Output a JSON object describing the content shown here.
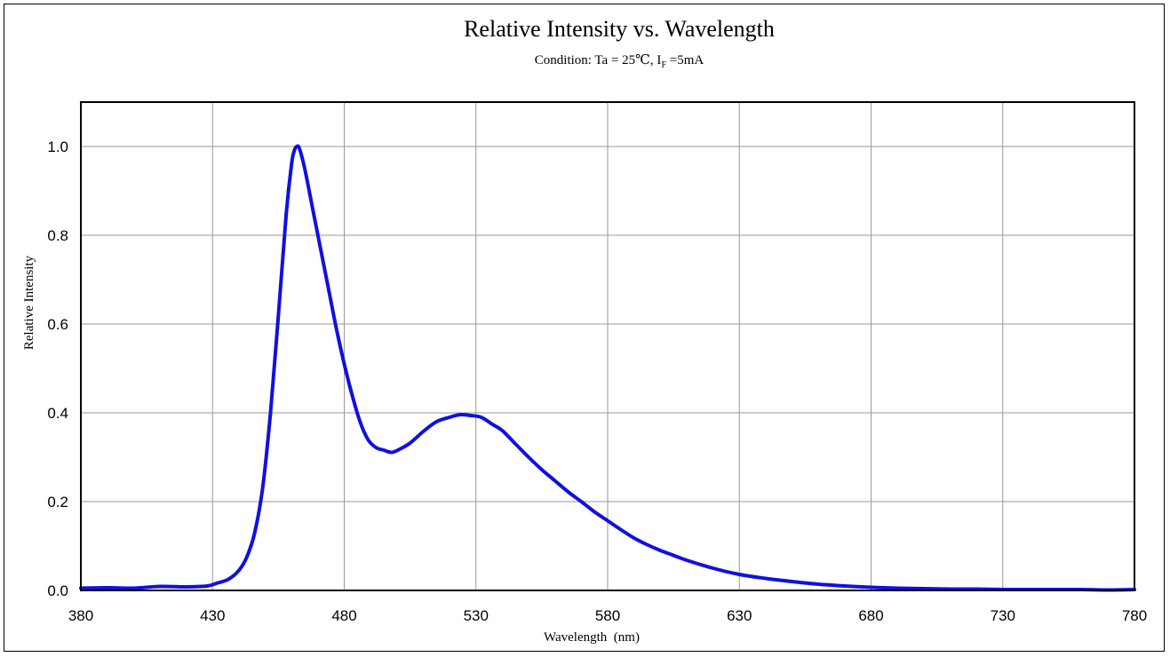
{
  "chart_data": {
    "type": "line",
    "title": "Relative Intensity vs. Wavelength",
    "subtitle": {
      "prefix": "Condition: Ta = 25℃, I",
      "subscript": "F",
      "suffix": " =5mA"
    },
    "xlabel": "Wavelength  (nm)",
    "ylabel": "Relative Intensity",
    "xlim": [
      380,
      780
    ],
    "ylim": [
      0,
      1.1
    ],
    "x_ticks": [
      "380",
      "430",
      "480",
      "530",
      "580",
      "630",
      "680",
      "730",
      "780"
    ],
    "y_ticks": [
      "0.0",
      "0.2",
      "0.4",
      "0.6",
      "0.8",
      "1.0"
    ],
    "grid": true,
    "series": [
      {
        "color": "#1010e0",
        "x": [
          380,
          390,
          400,
          410,
          420,
          428,
          432,
          436,
          440,
          443,
          446,
          449,
          452,
          455,
          458,
          460,
          461,
          462,
          463,
          465,
          468,
          471,
          474,
          477,
          480,
          483,
          486,
          489,
          492,
          495,
          498,
          501,
          505,
          510,
          515,
          520,
          524,
          528,
          532,
          536,
          540,
          545,
          550,
          555,
          560,
          565,
          570,
          575,
          580,
          585,
          590,
          595,
          600,
          605,
          610,
          620,
          630,
          640,
          650,
          660,
          670,
          680,
          690,
          700,
          710,
          720,
          730,
          740,
          750,
          760,
          770,
          780
        ],
        "y": [
          0.005,
          0.006,
          0.005,
          0.009,
          0.008,
          0.01,
          0.017,
          0.025,
          0.045,
          0.075,
          0.13,
          0.23,
          0.4,
          0.62,
          0.85,
          0.96,
          0.99,
          1.0,
          0.995,
          0.95,
          0.86,
          0.77,
          0.68,
          0.59,
          0.51,
          0.44,
          0.38,
          0.34,
          0.322,
          0.316,
          0.311,
          0.318,
          0.332,
          0.358,
          0.38,
          0.39,
          0.396,
          0.394,
          0.39,
          0.375,
          0.36,
          0.33,
          0.3,
          0.272,
          0.247,
          0.222,
          0.2,
          0.177,
          0.157,
          0.137,
          0.118,
          0.103,
          0.09,
          0.079,
          0.068,
          0.05,
          0.036,
          0.027,
          0.02,
          0.014,
          0.01,
          0.007,
          0.005,
          0.004,
          0.003,
          0.003,
          0.002,
          0.002,
          0.002,
          0.002,
          0.001,
          0.002
        ]
      }
    ]
  }
}
